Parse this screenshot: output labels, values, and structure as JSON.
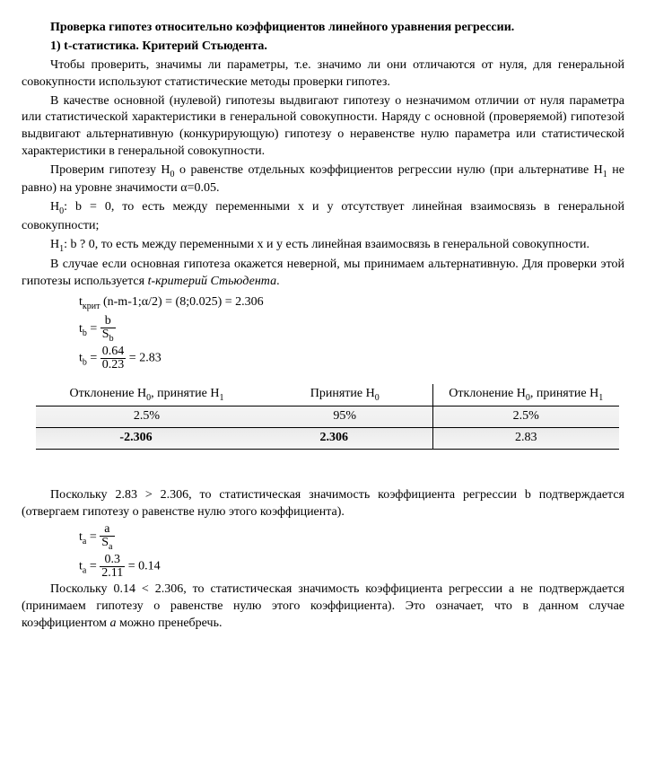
{
  "title1": "Проверка гипотез относительно коэффициентов линейного уравнения регрессии.",
  "title2": "1) t-статистика. Критерий Стьюдента.",
  "para1": "Чтобы проверить, значимы ли параметры, т.е. значимо ли они отличаются от нуля, для генеральной совокупности используют статистические методы проверки гипотез.",
  "para2": "В качестве основной (нулевой) гипотезы выдвигают гипотезу о незначимом отличии от нуля параметра или статистической характеристики в генеральной совокупности. Наряду с основной (проверяемой) гипотезой выдвигают альтернативную (конкурирующую) гипотезу о неравенстве нулю параметра или статистической характеристики в генеральной совокупности.",
  "para3a": "Проверим гипотезу H",
  "para3b": " о равенстве отдельных коэффициентов регрессии нулю (при альтернативе H",
  "para3c": " не равно) на уровне значимости α=0.05.",
  "h0a": "H",
  "h0b": ": b = 0, то есть между переменными x и y отсутствует линейная взаимосвязь в генеральной совокупности;",
  "h1a": "H",
  "h1b": ": b ? 0, то есть между переменными x и y есть линейная взаимосвязь в генеральной совокупности.",
  "para4a": "В случае если основная гипотеза окажется неверной, мы принимаем альтернативную. Для проверки этой гипотезы используется ",
  "para4b": "t-критерий Стьюдента",
  "para4c": ".",
  "f_tcrit_l": "t",
  "f_tcrit_sub": "крит",
  "f_tcrit_r": " (n-m-1;α/2) = (8;0.025) = 2.306",
  "f_tb1_l": "t",
  "f_tb1_sub": "b",
  "f_tb1_eq": " = ",
  "f_tb1_num": "b",
  "f_tb1_den_l": "S",
  "f_tb1_den_sub": "b",
  "f_tb2_l": "t",
  "f_tb2_sub": "b",
  "f_tb2_eq": " = ",
  "f_tb2_num": "0.64",
  "f_tb2_den": "0.23",
  "f_tb2_r": " = 2.83",
  "tbl": {
    "h1a": "Отклонение H",
    "h1b": ", принятие H",
    "h2a": "Принятие H",
    "h3a": "Отклонение H",
    "h3b": ", принятие H",
    "p_left": "2.5%",
    "p_mid": "95%",
    "p_right": "2.5%",
    "b_left": "-2.306",
    "b_right": "2.306",
    "b_val": "2.83"
  },
  "para5": "Поскольку 2.83 > 2.306, то статистическая значимость коэффициента регрессии b подтверждается (отвергаем гипотезу о равенстве нулю этого коэффициента).",
  "f_ta1_l": "t",
  "f_ta1_sub": "a",
  "f_ta1_eq": " = ",
  "f_ta1_num": "a",
  "f_ta1_den_l": "S",
  "f_ta1_den_sub": "a",
  "f_ta2_l": "t",
  "f_ta2_sub": "a",
  "f_ta2_eq": " = ",
  "f_ta2_num": "0.3",
  "f_ta2_den": "2.11",
  "f_ta2_r": " = 0.14",
  "para6a": "Поскольку 0.14 < 2.306, то статистическая значимость коэффициента регрессии a не подтверждается (принимаем гипотезу о равенстве нулю этого коэффициента). Это означает, что в данном случае коэффициентом ",
  "para6b": "a",
  "para6c": " можно пренебречь."
}
